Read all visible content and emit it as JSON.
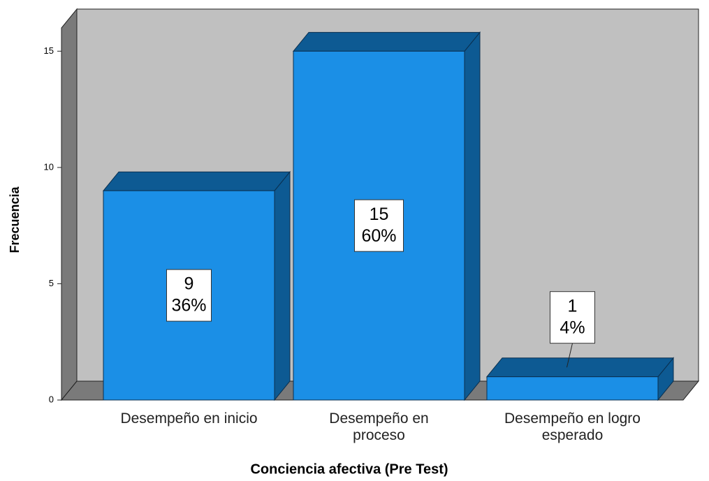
{
  "chart_data": {
    "type": "bar",
    "x_label": "Conciencia afectiva (Pre Test)",
    "y_label": "Frecuencia",
    "categories": [
      "Desempeño en inicio",
      "Desempeño en proceso",
      "Desempeño en logro esperado"
    ],
    "values": [
      9,
      15,
      1
    ],
    "percent_labels": [
      "36%",
      "60%",
      "4%"
    ],
    "color": "#1b8fe6",
    "ylim": [
      0,
      16
    ],
    "yticks": [
      0,
      5,
      10,
      15
    ]
  }
}
